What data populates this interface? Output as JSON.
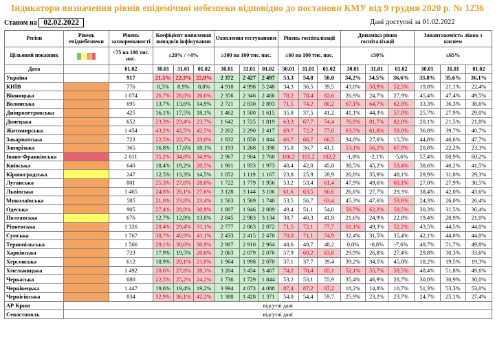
{
  "title": "Індикатори визначення рівнів епідемічної небезпеки відповідно до постанови КМУ від 9 грудня 2020 р. № 1236",
  "status_label": "Станом на",
  "status_date": "02.02.2022",
  "data_available": "Дані доступні за 01.02.2022",
  "colors": {
    "orange": "#f4a460",
    "red": "#e8626e",
    "yellow": "#ffff66",
    "green_cell": "#cdeece",
    "red_cell": "#f7c7cc"
  },
  "headers": {
    "region": "Регіон",
    "level": "Рівень епіднебезпеки",
    "morbidity": "Рівень захворюваності",
    "detection": "Коефіцієнт виявлення випадків інфікування",
    "testing": "Охоплення тестуванням",
    "hosp": "Рівень госпіталізації",
    "dyn": "Динаміка рівня госпіталізації",
    "oxygen": "Завантаженість ліжок з киснем",
    "target_label": "Цільовий показник",
    "target_morbidity": "<75 на 100 тис. нас.",
    "target_detection": "≤20% / <4%",
    "target_testing": "≥300 на 100 тис. нас.",
    "target_hosp": "≤60 на 100 тис. нас.",
    "target_dyn": "≤50%",
    "target_oxygen": "≤65%",
    "date_label": "Дата",
    "d0102": "01.02",
    "d3001": "30.01",
    "d3101": "31.01"
  },
  "rows": [
    {
      "region": "Україна",
      "level": "",
      "m": "917",
      "det": [
        "21,5%",
        "22,3%",
        "22,8%"
      ],
      "test": [
        "2 372",
        "2 427",
        "2 497"
      ],
      "hosp": [
        "53,3",
        "54,8",
        "58,0"
      ],
      "dyn": [
        "34,2%",
        "34,5%",
        "36,6%"
      ],
      "oxy": [
        "33,8%",
        "35,6%",
        "36,1%"
      ]
    },
    {
      "region": "КИЇВ",
      "level": "orange",
      "m": "776",
      "det": [
        "8,5%",
        "8,9%",
        "8,8%"
      ],
      "test": [
        "4 918",
        "4 998",
        "5 248"
      ],
      "hosp": [
        "34,3",
        "36,5",
        "39,5"
      ],
      "dyn": [
        "43,0%",
        "50,9%",
        "52,5%"
      ],
      "oxy": [
        "19,8%",
        "21,1%",
        "22,4%"
      ]
    },
    {
      "region": "Вінницька",
      "level": "orange",
      "m": "1 074",
      "det": [
        "26,7%",
        "28,0%",
        "26,6%"
      ],
      "test": [
        "2 356",
        "2 346",
        "2 466"
      ],
      "hosp": [
        "78,2",
        "78,4",
        "82,6"
      ],
      "dyn": [
        "26,9%",
        "24,7%",
        "27,9%"
      ],
      "oxy": [
        "45,4%",
        "47,4%",
        "49,5%"
      ]
    },
    {
      "region": "Волинська",
      "level": "orange",
      "m": "695",
      "det": [
        "13,7%",
        "13,6%",
        "14,9%"
      ],
      "test": [
        "2 721",
        "2 830",
        "2 893"
      ],
      "hosp": [
        "71,5",
        "74,2",
        "80,2"
      ],
      "dyn": [
        "67,1%",
        "64,7%",
        "62,0%"
      ],
      "oxy": [
        "33,3%",
        "36,3%",
        "38,6%"
      ]
    },
    {
      "region": "Дніпропетровська",
      "level": "orange",
      "m": "425",
      "det": [
        "16,1%",
        "17,5%",
        "18,1%"
      ],
      "test": [
        "1 462",
        "1 500",
        "1 615"
      ],
      "hosp": [
        "35,8",
        "37,5",
        "41,2"
      ],
      "dyn": [
        "41,1%",
        "44,3%",
        "57,0%"
      ],
      "oxy": [
        "25,7%",
        "27,9%",
        "29,0%"
      ]
    },
    {
      "region": "Донецька",
      "level": "orange",
      "m": "652",
      "det": [
        "23,3%",
        "23,4%",
        "23,7%"
      ],
      "test": [
        "1 642",
        "1 725",
        "1 819"
      ],
      "hosp": [
        "63,3",
        "67,7",
        "74,4"
      ],
      "dyn": [
        "76,8%",
        "81,7%",
        "82,0%"
      ],
      "oxy": [
        "20,1%",
        "21,5%",
        "21,8%"
      ]
    },
    {
      "region": "Житомирська",
      "level": "orange",
      "m": "1 454",
      "det": [
        "43,2%",
        "42,5%",
        "42,5%"
      ],
      "test": [
        "2 202",
        "2 290",
        "2 417"
      ],
      "hosp": [
        "69,7",
        "72,2",
        "77,0"
      ],
      "dyn": [
        "63,5%",
        "61,8%",
        "59,0%"
      ],
      "oxy": [
        "36,8%",
        "39,7%",
        "40,7%"
      ]
    },
    {
      "region": "Закарпатська",
      "level": "orange",
      "m": "723",
      "det": [
        "22,5%",
        "22,7%",
        "23,0%"
      ],
      "test": [
        "1 832",
        "1 850",
        "1 844"
      ],
      "hosp": [
        "66,7",
        "66,7",
        "66,5"
      ],
      "dyn": [
        "34,0%",
        "27,6%",
        "15,5%"
      ],
      "oxy": [
        "44,8%",
        "46,6%",
        "47,7%"
      ]
    },
    {
      "region": "Запорізька",
      "level": "orange",
      "m": "365",
      "det": [
        "16,8%",
        "17,6%",
        "18,1%"
      ],
      "test": [
        "1 193",
        "1 268",
        "1 398"
      ],
      "hosp": [
        "35,0",
        "36,7",
        "41,1"
      ],
      "dyn": [
        "53,1%",
        "56,2%",
        "67,9%"
      ],
      "oxy": [
        "20,8%",
        "22,2%",
        "23,3%"
      ]
    },
    {
      "region": "Івано-Франківська",
      "level": "red",
      "m": "2 011",
      "det": [
        "35,2%",
        "34,8%",
        "34,9%"
      ],
      "test": [
        "2 967",
        "2 904",
        "2 760"
      ],
      "hosp": [
        "106,2",
        "105,2",
        "102,2"
      ],
      "dyn": [
        "-1,0%",
        "-2,1%",
        "-5,6%"
      ],
      "oxy": [
        "57,4%",
        "60,9%",
        "60,2%"
      ]
    },
    {
      "region": "Київська",
      "level": "orange",
      "m": "640",
      "det": [
        "18,4%",
        "19,2%",
        "20,5%"
      ],
      "test": [
        "1 901",
        "1 953",
        "1 973"
      ],
      "hosp": [
        "40,4",
        "42,0",
        "45,8"
      ],
      "dyn": [
        "38,5%",
        "45,2%",
        "53,4%"
      ],
      "oxy": [
        "38,6%",
        "40,2%",
        "41,5%"
      ]
    },
    {
      "region": "Кіровоградська",
      "level": "yellow",
      "m": "247",
      "det": [
        "12,5%",
        "13,3%",
        "14,5%"
      ],
      "test": [
        "1 052",
        "1 119",
        "1 167"
      ],
      "hosp": [
        "23,8",
        "25,9",
        "28,9"
      ],
      "dyn": [
        "20,8%",
        "35,9%",
        "48,1%"
      ],
      "oxy": [
        "29,9%",
        "31,0%",
        "29,3%"
      ]
    },
    {
      "region": "Луганська",
      "level": "orange",
      "m": "801",
      "det": [
        "25,3%",
        "27,6%",
        "28,0%"
      ],
      "test": [
        "1 722",
        "1 779",
        "1 956"
      ],
      "hosp": [
        "53,2",
        "53,4",
        "61,4"
      ],
      "dyn": [
        "47,9%",
        "49,6%",
        "60,1%"
      ],
      "oxy": [
        "27,0%",
        "27,9%",
        "30,5%"
      ]
    },
    {
      "region": "Львівська",
      "level": "orange",
      "m": "1 465",
      "det": [
        "24,8%",
        "26,1%",
        "27,6%"
      ],
      "test": [
        "3 128",
        "3 144",
        "3 106"
      ],
      "hosp": [
        "61,6",
        "63,5",
        "66,6"
      ],
      "dyn": [
        "26,6%",
        "27,7%",
        "29,3%"
      ],
      "oxy": [
        "38,4%",
        "42,0%",
        "43,6%"
      ]
    },
    {
      "region": "Миколаївська",
      "level": "orange",
      "m": "585",
      "det": [
        "21,0%",
        "23,8%",
        "23,4%"
      ],
      "test": [
        "1 563",
        "1 569",
        "1 740"
      ],
      "hosp": [
        "53,5",
        "56,7",
        "63,4"
      ],
      "dyn": [
        "45,3%",
        "47,6%",
        "59,6%"
      ],
      "oxy": [
        "24,3%",
        "26,0%",
        "26,4%"
      ]
    },
    {
      "region": "Одеська",
      "level": "orange",
      "m": "905",
      "det": [
        "27,4%",
        "28,8%",
        "30,9%"
      ],
      "test": [
        "1 807",
        "1 946",
        "2 009"
      ],
      "hosp": [
        "49,4",
        "51,1",
        "54,0"
      ],
      "dyn": [
        "59,7%",
        "62,2%",
        "59,5%"
      ],
      "oxy": [
        "30,3%",
        "31,5%",
        "30,4%"
      ]
    },
    {
      "region": "Полтавська",
      "level": "yellow",
      "m": "676",
      "det": [
        "12,7%",
        "12,8%",
        "13,0%"
      ],
      "test": [
        "2 845",
        "2 983",
        "3 134"
      ],
      "hosp": [
        "38,7",
        "40,3",
        "41,8"
      ],
      "dyn": [
        "21,6%",
        "24,9%",
        "22,8%"
      ],
      "oxy": [
        "19,4%",
        "20,9%",
        "21,0%"
      ]
    },
    {
      "region": "Рівненська",
      "level": "orange",
      "m": "1 326",
      "det": [
        "28,4%",
        "29,4%",
        "31,1%"
      ],
      "test": [
        "2 777",
        "2 863",
        "2 872"
      ],
      "hosp": [
        "71,5",
        "72,1",
        "77,7"
      ],
      "dyn": [
        "61,1%",
        "49,3%",
        "52,2%"
      ],
      "oxy": [
        "43,5%",
        "44,5%",
        "44,0%"
      ]
    },
    {
      "region": "Сумська",
      "level": "orange",
      "m": "1 767",
      "det": [
        "38,7%",
        "40,9%",
        "41,1%"
      ],
      "test": [
        "2 433",
        "2 415",
        "2 470"
      ],
      "hosp": [
        "70,0",
        "71,1",
        "74,9"
      ],
      "dyn": [
        "32,4%",
        "31,5%",
        "35,4%"
      ],
      "oxy": [
        "42,1%",
        "44,0%",
        "44,0%"
      ]
    },
    {
      "region": "Тернопільська",
      "level": "orange",
      "m": "1 566",
      "det": [
        "29,1%",
        "30,0%",
        "30,9%"
      ],
      "test": [
        "2 907",
        "2 910",
        "2 964"
      ],
      "hosp": [
        "48,6",
        "48,7",
        "48,2"
      ],
      "dyn": [
        "0,0%",
        "-0,8%",
        "-7,6%"
      ],
      "oxy": [
        "49,7%",
        "51,7%",
        "49,8%"
      ]
    },
    {
      "region": "Харківська",
      "level": "orange",
      "m": "723",
      "det": [
        "17,9%",
        "19,5%",
        "20,6%"
      ],
      "test": [
        "2 063",
        "2 079",
        "2 076"
      ],
      "hosp": [
        "57,9",
        "60,2",
        "63,8"
      ],
      "dyn": [
        "29,9%",
        "26,8%",
        "27,4%"
      ],
      "oxy": [
        "29,8%",
        "30,3%",
        "33,6%"
      ]
    },
    {
      "region": "Херсонська",
      "level": "orange",
      "m": "612",
      "det": [
        "18,9%",
        "20,1%",
        "21,0%"
      ],
      "test": [
        "1 964",
        "1 998",
        "2 070"
      ],
      "hosp": [
        "37,1",
        "37,7",
        "39,4"
      ],
      "dyn": [
        "39,2%",
        "34,5%",
        "45,0%"
      ],
      "oxy": [
        "18,2%",
        "19,5%",
        "19,3%"
      ]
    },
    {
      "region": "Хмельницька",
      "level": "orange",
      "m": "1 492",
      "det": [
        "28,6%",
        "27,8%",
        "28,3%"
      ],
      "test": [
        "3 204",
        "3 434",
        "3 467"
      ],
      "hosp": [
        "74,2",
        "78,4",
        "85,1"
      ],
      "dyn": [
        "52,1%",
        "55,7%",
        "59,5%"
      ],
      "oxy": [
        "48,4%",
        "51,8%",
        "49,6%"
      ]
    },
    {
      "region": "Черкаська",
      "level": "orange",
      "m": "680",
      "det": [
        "22,5%",
        "25,2%",
        "24,2%"
      ],
      "test": [
        "1 736",
        "1 729",
        "1 844"
      ],
      "hosp": [
        "53,2",
        "53,1",
        "55,9"
      ],
      "dyn": [
        "35,4%",
        "46,9%",
        "28,7%"
      ],
      "oxy": [
        "30,0%",
        "30,9%",
        "30,0%"
      ]
    },
    {
      "region": "Чернівецька",
      "level": "orange",
      "m": "1 447",
      "det": [
        "19,6%",
        "19,4%",
        "19,2%"
      ],
      "test": [
        "3 994",
        "4 073",
        "4 088"
      ],
      "hosp": [
        "87,4",
        "87,2",
        "87,2"
      ],
      "dyn": [
        "18,2%",
        "14,8%",
        "10,7%"
      ],
      "oxy": [
        "51,3%",
        "53,3%",
        "53,0%"
      ]
    },
    {
      "region": "Чернігівська",
      "level": "orange",
      "m": "834",
      "det": [
        "32,9%",
        "36,1%",
        "42,2%"
      ],
      "test": [
        "1 388",
        "1 428",
        "1 371"
      ],
      "hosp": [
        "54,0",
        "54,4",
        "59,7"
      ],
      "dyn": [
        "25,9%",
        "23,2%",
        "23,7%"
      ],
      "oxy": [
        "24,7%",
        "25,1%",
        "27,4%"
      ]
    }
  ],
  "missing_rows": [
    {
      "region": "АР Крим",
      "text": "відсутні дані"
    },
    {
      "region": "Севастополь",
      "text": "відсутні дані"
    }
  ]
}
